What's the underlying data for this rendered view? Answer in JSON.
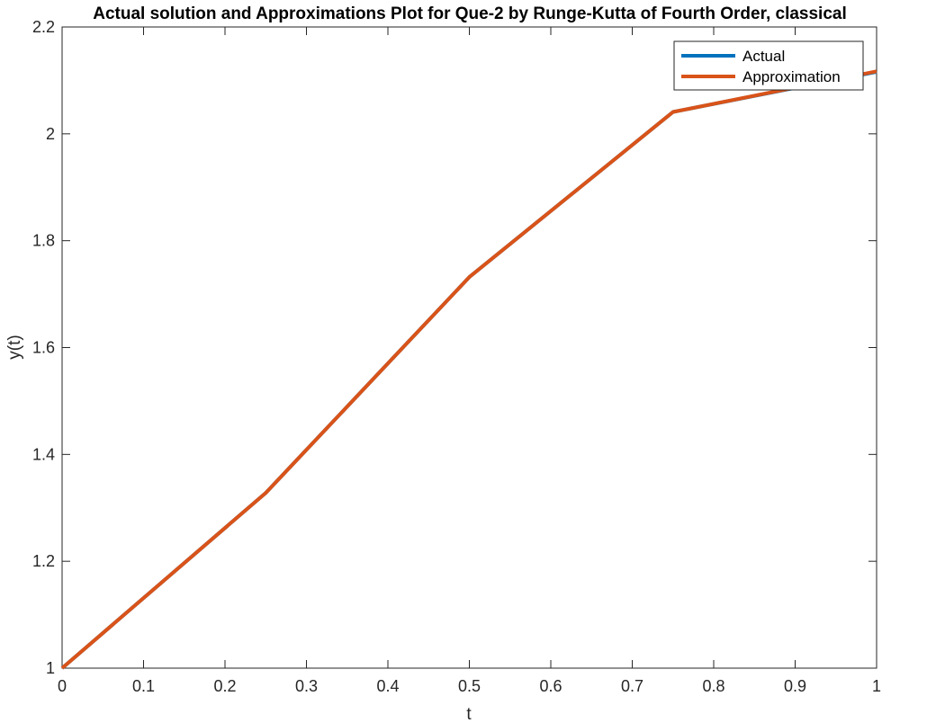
{
  "chart_data": {
    "type": "line",
    "title": "Actual solution and Approximations Plot for Que-2 by Runge-Kutta of Fourth Order, classical",
    "xlabel": "t",
    "ylabel": "y(t)",
    "xlim": [
      0,
      1
    ],
    "ylim": [
      1,
      2.2
    ],
    "xticks": [
      0,
      0.1,
      0.2,
      0.3,
      0.4,
      0.5,
      0.6,
      0.7,
      0.8,
      0.9,
      1
    ],
    "xtick_labels": [
      "0",
      "0.1",
      "0.2",
      "0.3",
      "0.4",
      "0.5",
      "0.6",
      "0.7",
      "0.8",
      "0.9",
      "1"
    ],
    "yticks": [
      1,
      1.2,
      1.4,
      1.6,
      1.8,
      2,
      2.2
    ],
    "ytick_labels": [
      "1",
      "1.2",
      "1.4",
      "1.6",
      "1.8",
      "2",
      "2.2"
    ],
    "grid": false,
    "legend_position": "top-right",
    "x": [
      0,
      0.25,
      0.5,
      0.75,
      1
    ],
    "series": [
      {
        "name": "Actual",
        "color": "#0072BD",
        "values": [
          1,
          1.328,
          1.732,
          2.041,
          2.116
        ]
      },
      {
        "name": "Approximation",
        "color": "#D95319",
        "values": [
          1,
          1.328,
          1.732,
          2.041,
          2.117
        ]
      }
    ]
  }
}
